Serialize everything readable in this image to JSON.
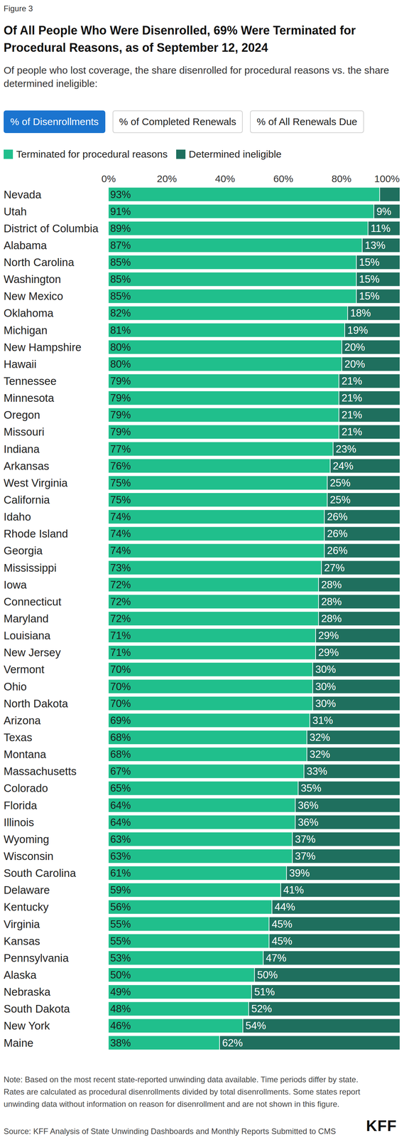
{
  "chart_data": {
    "type": "bar",
    "orientation": "horizontal",
    "stacked": true,
    "data_labels": true,
    "grid": false,
    "legend": "top",
    "tick_labels": "x",
    "figure_label": "Figure 3",
    "title": "Of All People Who Were Disenrolled, 69% Were Terminated for Procedural Reasons, as of September 12, 2024",
    "subtitle": "Of people who lost coverage, the share disenrolled for procedural reasons vs. the share determined ineligible:",
    "tabs": [
      "% of Disenrollments",
      "% of Completed Renewals",
      "% of All Renewals Due"
    ],
    "categories": [
      "Nevada",
      "Utah",
      "District of Columbia",
      "Alabama",
      "North Carolina",
      "Washington",
      "New Mexico",
      "Oklahoma",
      "Michigan",
      "New Hampshire",
      "Hawaii",
      "Tennessee",
      "Minnesota",
      "Oregon",
      "Missouri",
      "Indiana",
      "Arkansas",
      "West Virginia",
      "California",
      "Idaho",
      "Rhode Island",
      "Georgia",
      "Mississippi",
      "Iowa",
      "Connecticut",
      "Maryland",
      "Louisiana",
      "New Jersey",
      "Vermont",
      "Ohio",
      "North Dakota",
      "Arizona",
      "Texas",
      "Montana",
      "Massachusetts",
      "Colorado",
      "Florida",
      "Illinois",
      "Wyoming",
      "Wisconsin",
      "South Carolina",
      "Delaware",
      "Kentucky",
      "Virginia",
      "Kansas",
      "Pennsylvania",
      "Alaska",
      "Nebraska",
      "South Dakota",
      "New York",
      "Maine"
    ],
    "series": [
      {
        "name": "Terminated for procedural reasons",
        "color": "#20bf8c",
        "values": [
          93,
          91,
          89,
          87,
          85,
          85,
          85,
          82,
          81,
          80,
          80,
          79,
          79,
          79,
          79,
          77,
          76,
          75,
          75,
          74,
          74,
          74,
          73,
          72,
          72,
          72,
          71,
          71,
          70,
          70,
          70,
          69,
          68,
          68,
          67,
          65,
          64,
          64,
          63,
          63,
          61,
          59,
          56,
          55,
          55,
          53,
          50,
          49,
          48,
          46,
          38
        ],
        "value_labels": [
          "93%",
          "91%",
          "89%",
          "87%",
          "85%",
          "85%",
          "85%",
          "82%",
          "81%",
          "80%",
          "80%",
          "79%",
          "79%",
          "79%",
          "79%",
          "77%",
          "76%",
          "75%",
          "75%",
          "74%",
          "74%",
          "74%",
          "73%",
          "72%",
          "72%",
          "72%",
          "71%",
          "71%",
          "70%",
          "70%",
          "70%",
          "69%",
          "68%",
          "68%",
          "67%",
          "65%",
          "64%",
          "64%",
          "63%",
          "63%",
          "61%",
          "59%",
          "56%",
          "55%",
          "55%",
          "53%",
          "50%",
          "49%",
          "48%",
          "46%",
          "38%"
        ]
      },
      {
        "name": "Determined ineligible",
        "color": "#1f6f5e",
        "values": [
          7,
          9,
          11,
          13,
          15,
          15,
          15,
          18,
          19,
          20,
          20,
          21,
          21,
          21,
          21,
          23,
          24,
          25,
          25,
          26,
          26,
          26,
          27,
          28,
          28,
          28,
          29,
          29,
          30,
          30,
          30,
          31,
          32,
          32,
          33,
          35,
          36,
          36,
          37,
          37,
          39,
          41,
          44,
          45,
          45,
          47,
          50,
          51,
          52,
          54,
          62
        ],
        "value_labels": [
          null,
          "9%",
          "11%",
          "13%",
          "15%",
          "15%",
          "15%",
          "18%",
          "19%",
          "20%",
          "20%",
          "21%",
          "21%",
          "21%",
          "21%",
          "23%",
          "24%",
          "25%",
          "25%",
          "26%",
          "26%",
          "26%",
          "27%",
          "28%",
          "28%",
          "28%",
          "29%",
          "29%",
          "30%",
          "30%",
          "30%",
          "31%",
          "32%",
          "32%",
          "33%",
          "35%",
          "36%",
          "36%",
          "37%",
          "37%",
          "39%",
          "41%",
          "44%",
          "45%",
          "45%",
          "47%",
          "50%",
          "51%",
          "52%",
          "54%",
          "62%"
        ]
      }
    ],
    "xlim": [
      0,
      100
    ],
    "xticks": [
      {
        "value": 0,
        "label": "0%"
      },
      {
        "value": 20,
        "label": "20%"
      },
      {
        "value": 40,
        "label": "40%"
      },
      {
        "value": 60,
        "label": "60%"
      },
      {
        "value": 80,
        "label": "80%"
      },
      {
        "value": 100,
        "label": "100%"
      }
    ],
    "note": "Note: Based on the most recent state-reported unwinding data available. Time periods differ by state. Rates are calculated as procedural disenrollments divided by total disenrollments. Some states report unwinding data without information on reason for disenrollment and are not shown in this figure.",
    "source": "Source: KFF Analysis of State Unwinding Dashboards and Monthly Reports Submitted to CMS",
    "logo": "KFF"
  }
}
